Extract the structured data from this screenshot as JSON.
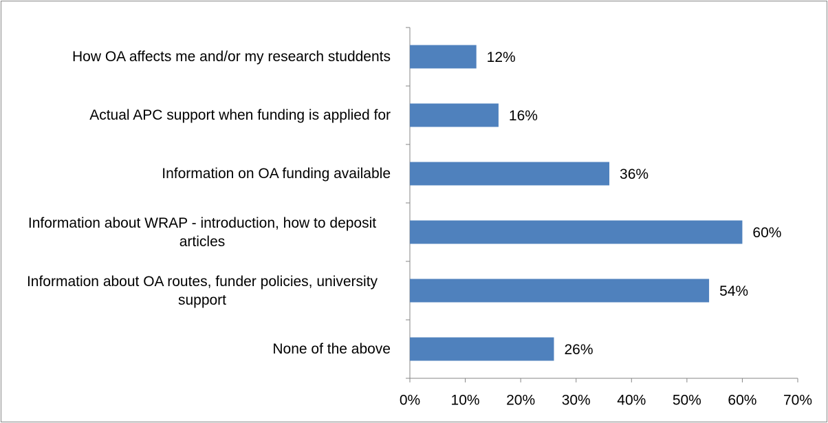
{
  "chart_data": {
    "type": "hbar",
    "categories": [
      "How OA affects me and/or my research studdents",
      "Actual APC support when funding is applied for",
      "Information on OA funding available",
      "Information about WRAP - introduction, how to deposit articles",
      "Information about OA routes, funder policies, university support",
      "None of the above"
    ],
    "values": [
      12,
      16,
      36,
      60,
      54,
      26
    ],
    "value_labels": [
      "12%",
      "16%",
      "36%",
      "60%",
      "54%",
      "26%"
    ],
    "color": "#4f81bd",
    "xlim": [
      0,
      70
    ],
    "xticks": [
      {
        "value": 0,
        "label": "0%"
      },
      {
        "value": 10,
        "label": "10%"
      },
      {
        "value": 20,
        "label": "20%"
      },
      {
        "value": 30,
        "label": "30%"
      },
      {
        "value": 40,
        "label": "40%"
      },
      {
        "value": 50,
        "label": "50%"
      },
      {
        "value": 60,
        "label": "60%"
      },
      {
        "value": 70,
        "label": "70%"
      }
    ],
    "grid": false
  }
}
